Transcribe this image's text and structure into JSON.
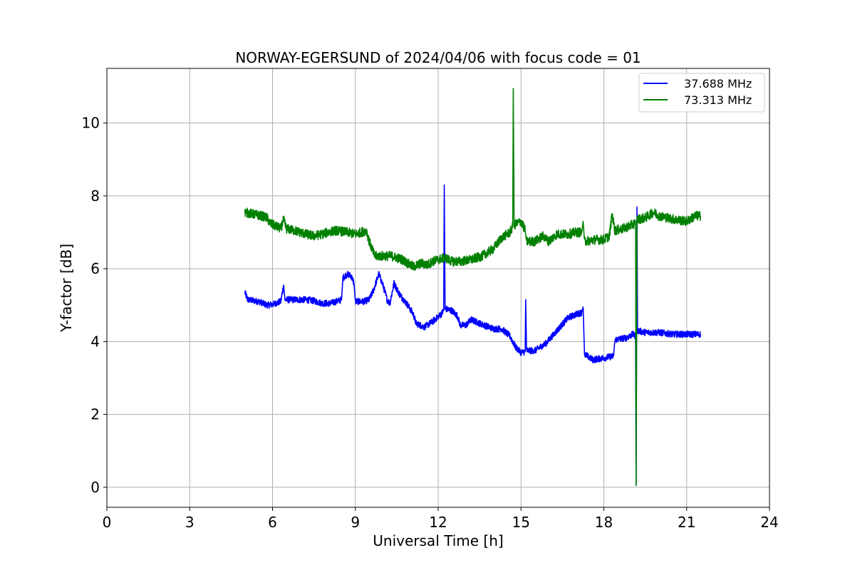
{
  "chart_data": {
    "type": "line",
    "title": "NORWAY-EGERSUND of 2024/04/06 with focus code = 01",
    "xlabel": "Universal Time [h]",
    "ylabel": "Y-factor [dB]",
    "xlim": [
      0,
      24
    ],
    "ylim": [
      -0.55,
      11.5
    ],
    "xticks": [
      0,
      3,
      6,
      9,
      12,
      15,
      18,
      21,
      24
    ],
    "yticks": [
      0,
      2,
      4,
      6,
      8,
      10
    ],
    "grid": true,
    "legend_position": "top-right",
    "series": [
      {
        "name": "37.688 MHz",
        "color": "#0000ff",
        "noise": 0.09,
        "points": [
          [
            5.0,
            5.35
          ],
          [
            5.1,
            5.15
          ],
          [
            5.5,
            5.1
          ],
          [
            5.8,
            5.0
          ],
          [
            6.0,
            5.02
          ],
          [
            6.3,
            5.1
          ],
          [
            6.4,
            5.55
          ],
          [
            6.45,
            5.15
          ],
          [
            6.8,
            5.15
          ],
          [
            7.2,
            5.15
          ],
          [
            7.5,
            5.12
          ],
          [
            7.8,
            5.05
          ],
          [
            8.1,
            5.05
          ],
          [
            8.3,
            5.1
          ],
          [
            8.5,
            5.15
          ],
          [
            8.55,
            5.75
          ],
          [
            8.7,
            5.85
          ],
          [
            8.85,
            5.8
          ],
          [
            8.95,
            5.6
          ],
          [
            9.0,
            5.1
          ],
          [
            9.3,
            5.1
          ],
          [
            9.5,
            5.15
          ],
          [
            9.65,
            5.4
          ],
          [
            9.85,
            5.85
          ],
          [
            10.0,
            5.55
          ],
          [
            10.15,
            5.15
          ],
          [
            10.25,
            5.05
          ],
          [
            10.4,
            5.6
          ],
          [
            10.6,
            5.3
          ],
          [
            10.9,
            5.0
          ],
          [
            11.1,
            4.75
          ],
          [
            11.2,
            4.5
          ],
          [
            11.5,
            4.4
          ],
          [
            11.8,
            4.55
          ],
          [
            12.1,
            4.75
          ],
          [
            12.2,
            4.85
          ],
          [
            12.22,
            8.3
          ],
          [
            12.25,
            4.9
          ],
          [
            12.5,
            4.85
          ],
          [
            12.7,
            4.7
          ],
          [
            12.8,
            4.45
          ],
          [
            13.0,
            4.45
          ],
          [
            13.2,
            4.6
          ],
          [
            13.5,
            4.5
          ],
          [
            14.0,
            4.35
          ],
          [
            14.3,
            4.35
          ],
          [
            14.6,
            4.15
          ],
          [
            14.8,
            3.85
          ],
          [
            15.0,
            3.7
          ],
          [
            15.15,
            3.72
          ],
          [
            15.17,
            5.15
          ],
          [
            15.2,
            3.75
          ],
          [
            15.5,
            3.75
          ],
          [
            15.9,
            3.95
          ],
          [
            16.3,
            4.3
          ],
          [
            16.7,
            4.65
          ],
          [
            17.0,
            4.75
          ],
          [
            17.2,
            4.8
          ],
          [
            17.25,
            4.95
          ],
          [
            17.3,
            3.65
          ],
          [
            17.6,
            3.5
          ],
          [
            18.0,
            3.55
          ],
          [
            18.35,
            3.6
          ],
          [
            18.4,
            4.05
          ],
          [
            18.8,
            4.1
          ],
          [
            19.05,
            4.2
          ],
          [
            19.15,
            4.15
          ],
          [
            19.17,
            0.05
          ],
          [
            19.2,
            7.7
          ],
          [
            19.22,
            4.3
          ],
          [
            19.5,
            4.25
          ],
          [
            20.0,
            4.25
          ],
          [
            20.5,
            4.2
          ],
          [
            21.0,
            4.2
          ],
          [
            21.5,
            4.2
          ]
        ]
      },
      {
        "name": "73.313 MHz",
        "color": "#008000",
        "noise": 0.13,
        "points": [
          [
            5.0,
            7.55
          ],
          [
            5.3,
            7.5
          ],
          [
            5.6,
            7.45
          ],
          [
            5.8,
            7.4
          ],
          [
            5.9,
            7.25
          ],
          [
            6.3,
            7.1
          ],
          [
            6.4,
            7.35
          ],
          [
            6.5,
            7.1
          ],
          [
            6.8,
            7.05
          ],
          [
            7.2,
            6.95
          ],
          [
            7.5,
            6.9
          ],
          [
            7.8,
            6.95
          ],
          [
            8.0,
            7.0
          ],
          [
            8.3,
            7.05
          ],
          [
            8.7,
            7.0
          ],
          [
            9.0,
            6.95
          ],
          [
            9.2,
            7.0
          ],
          [
            9.4,
            7.05
          ],
          [
            9.5,
            6.75
          ],
          [
            9.7,
            6.35
          ],
          [
            10.0,
            6.35
          ],
          [
            10.3,
            6.35
          ],
          [
            10.7,
            6.25
          ],
          [
            11.1,
            6.05
          ],
          [
            11.4,
            6.15
          ],
          [
            11.6,
            6.1
          ],
          [
            11.8,
            6.2
          ],
          [
            12.0,
            6.25
          ],
          [
            12.25,
            6.3
          ],
          [
            12.5,
            6.2
          ],
          [
            12.8,
            6.2
          ],
          [
            13.2,
            6.25
          ],
          [
            13.6,
            6.35
          ],
          [
            14.0,
            6.55
          ],
          [
            14.3,
            6.85
          ],
          [
            14.6,
            7.0
          ],
          [
            14.7,
            7.15
          ],
          [
            14.72,
            10.95
          ],
          [
            14.75,
            7.2
          ],
          [
            15.0,
            7.3
          ],
          [
            15.15,
            7.05
          ],
          [
            15.2,
            6.75
          ],
          [
            15.5,
            6.75
          ],
          [
            15.8,
            6.9
          ],
          [
            16.0,
            6.75
          ],
          [
            16.3,
            6.95
          ],
          [
            16.7,
            6.95
          ],
          [
            17.0,
            7.0
          ],
          [
            17.2,
            7.0
          ],
          [
            17.25,
            7.3
          ],
          [
            17.3,
            6.75
          ],
          [
            17.7,
            6.8
          ],
          [
            18.0,
            6.8
          ],
          [
            18.2,
            6.9
          ],
          [
            18.3,
            7.5
          ],
          [
            18.4,
            7.05
          ],
          [
            18.7,
            7.1
          ],
          [
            19.0,
            7.2
          ],
          [
            19.15,
            7.25
          ],
          [
            19.17,
            0.05
          ],
          [
            19.2,
            7.35
          ],
          [
            19.5,
            7.4
          ],
          [
            19.8,
            7.55
          ],
          [
            20.0,
            7.45
          ],
          [
            20.3,
            7.4
          ],
          [
            20.6,
            7.35
          ],
          [
            21.0,
            7.3
          ],
          [
            21.3,
            7.45
          ],
          [
            21.5,
            7.45
          ]
        ]
      }
    ]
  }
}
